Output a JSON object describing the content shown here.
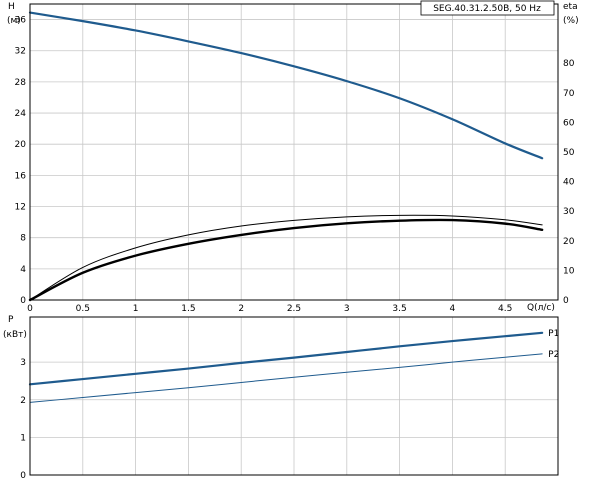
{
  "chart_data": [
    {
      "type": "line",
      "title": "SEG.40.31.2.50B, 50 Hz",
      "xlabel": "Q(л/с)",
      "ylabel": "H",
      "ylabel_unit": "(м)",
      "y2label": "eta",
      "y2label_unit": "(%)",
      "xlim": [
        0,
        5
      ],
      "ylim": [
        0,
        38
      ],
      "y2lim": [
        0,
        100
      ],
      "xticks": [
        0,
        0.5,
        1,
        1.5,
        2,
        2.5,
        3,
        3.5,
        4,
        4.5
      ],
      "yticks": [
        0,
        4,
        8,
        12,
        16,
        20,
        24,
        28,
        32,
        36
      ],
      "y2ticks": [
        0,
        10,
        20,
        30,
        40,
        50,
        60,
        70,
        80
      ],
      "grid": true,
      "series": [
        {
          "axis": "left",
          "color": "#1f5b8e",
          "x": [
            0,
            0.5,
            1,
            1.5,
            2,
            2.5,
            3,
            3.5,
            4,
            4.5,
            4.85
          ],
          "values": [
            36.9,
            35.8,
            34.6,
            33.2,
            31.7,
            30.0,
            28.1,
            25.9,
            23.2,
            20.1,
            18.2
          ]
        },
        {
          "axis": "right",
          "color": "#000000",
          "x": [
            0,
            0.5,
            1,
            1.5,
            2,
            2.5,
            3,
            3.5,
            4,
            4.5,
            4.85
          ],
          "values": [
            0,
            11.0,
            17.6,
            22.0,
            25.0,
            26.9,
            28.1,
            28.6,
            28.4,
            27.1,
            25.4
          ]
        },
        {
          "axis": "right",
          "color": "#000000",
          "x": [
            0,
            0.5,
            1,
            1.5,
            2,
            2.5,
            3,
            3.5,
            4,
            4.5,
            4.85
          ],
          "values": [
            0,
            9.2,
            15.0,
            19.0,
            22.0,
            24.3,
            25.9,
            26.8,
            27.0,
            25.8,
            23.7
          ]
        }
      ]
    },
    {
      "type": "line",
      "ylabel": "P",
      "ylabel_unit": "(кВт)",
      "xlim": [
        0,
        5
      ],
      "ylim": [
        0,
        4.2
      ],
      "yticks": [
        0,
        1,
        2,
        3
      ],
      "grid": true,
      "series": [
        {
          "name": "P1",
          "color": "#1f5b8e",
          "x": [
            0,
            0.5,
            1,
            1.5,
            2,
            2.5,
            3,
            3.5,
            4,
            4.5,
            4.85
          ],
          "values": [
            2.41,
            2.55,
            2.69,
            2.83,
            2.98,
            3.12,
            3.27,
            3.42,
            3.56,
            3.69,
            3.78
          ]
        },
        {
          "name": "P2",
          "color": "#1f5b8e",
          "x": [
            0,
            0.5,
            1,
            1.5,
            2,
            2.5,
            3,
            3.5,
            4,
            4.5,
            4.85
          ],
          "values": [
            1.93,
            2.06,
            2.19,
            2.32,
            2.46,
            2.6,
            2.73,
            2.86,
            3.0,
            3.13,
            3.22
          ]
        }
      ]
    }
  ]
}
